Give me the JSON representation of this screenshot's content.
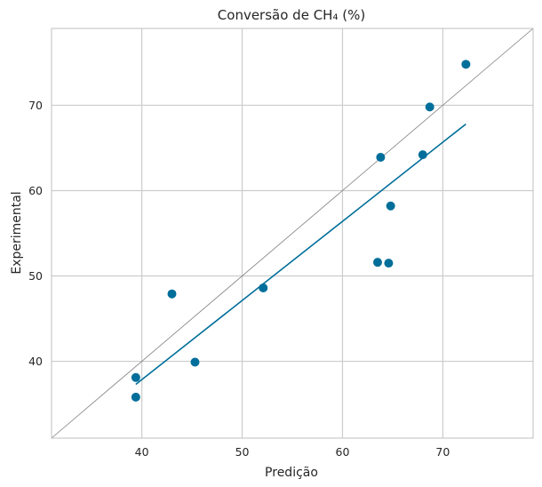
{
  "chart_data": {
    "type": "scatter",
    "title": "Conversão de CH₄ (%)",
    "xlabel": "Predição",
    "ylabel": "Experimental",
    "xlim": [
      31,
      79
    ],
    "ylim": [
      31,
      79
    ],
    "xticks": [
      40,
      50,
      60,
      70
    ],
    "yticks": [
      40,
      50,
      60,
      70
    ],
    "grid": true,
    "colors": {
      "points": "#006e9a",
      "fit_line": "#006e9a",
      "identity_line": "#808080",
      "grid": "#cccccc",
      "frame": "#bfbfbf"
    },
    "points": [
      {
        "x": 39.4,
        "y": 38.1
      },
      {
        "x": 39.4,
        "y": 35.8
      },
      {
        "x": 43.0,
        "y": 47.9
      },
      {
        "x": 45.3,
        "y": 39.9
      },
      {
        "x": 52.1,
        "y": 48.6
      },
      {
        "x": 63.5,
        "y": 51.6
      },
      {
        "x": 63.8,
        "y": 63.9
      },
      {
        "x": 64.6,
        "y": 51.5
      },
      {
        "x": 64.8,
        "y": 58.2
      },
      {
        "x": 68.0,
        "y": 64.2
      },
      {
        "x": 68.7,
        "y": 69.8
      },
      {
        "x": 72.3,
        "y": 74.8
      }
    ],
    "fit_line": {
      "x": [
        39.4,
        72.3
      ],
      "y": [
        37.3,
        67.8
      ]
    },
    "identity_line": {
      "x": [
        31,
        79
      ],
      "y": [
        31,
        79
      ]
    }
  }
}
